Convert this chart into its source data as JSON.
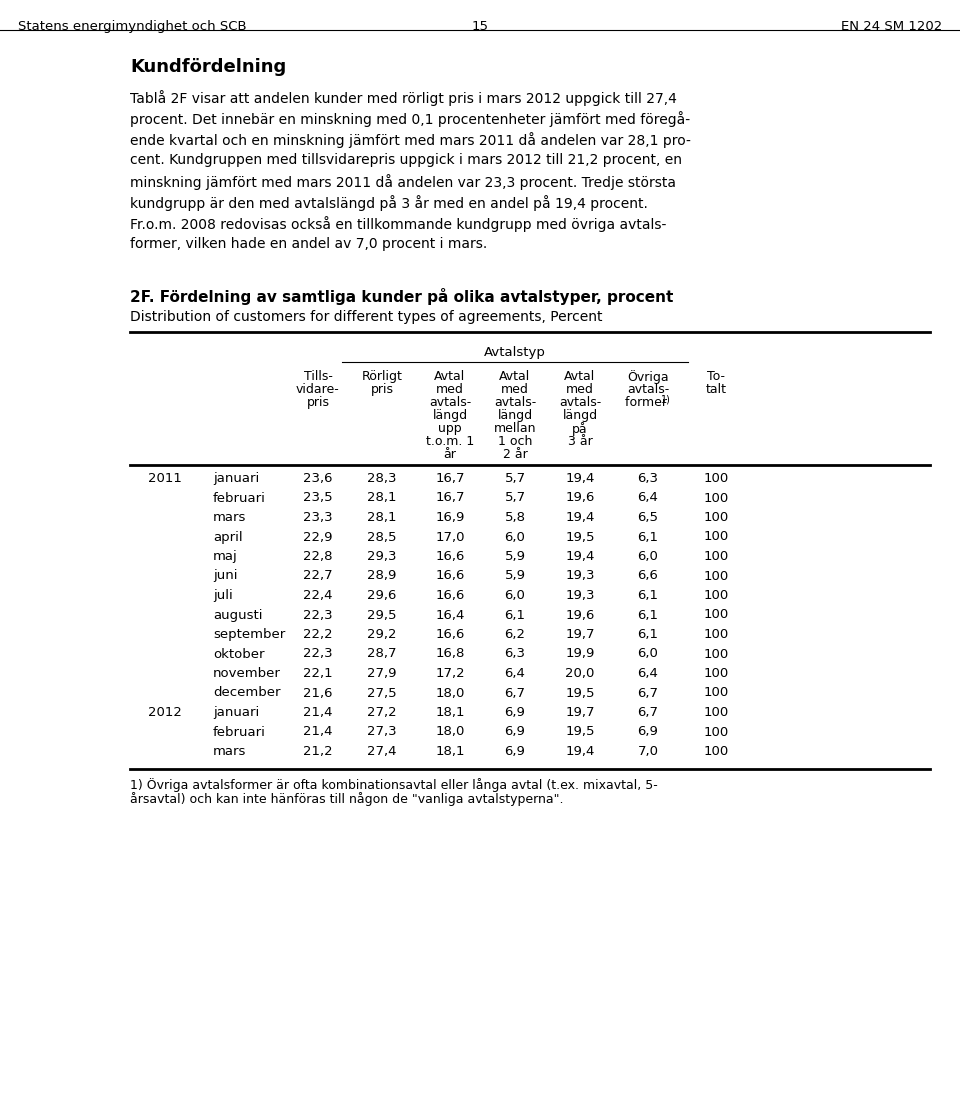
{
  "header_left": "Statens energimyndighet och SCB",
  "header_center": "15",
  "header_right": "EN 24 SM 1202",
  "section_title": "Kundfördelning",
  "body_paragraphs": [
    "Tablå 2F visar att andelen kunder med rörligt pris i mars 2012 uppgick till 27,4 procent. Det innebär en minskning med 0,1 procentenheter jämfört med föregå-ende kvartal och en minskning jämfört med mars 2011 då andelen var 28,1 pro-cent. Kundgruppen med tillsvidarepris uppgick i mars 2012 till 21,2 procent, en minskning jämfört med mars 2011 då andelen var 23,3 procent. Tredje största kundgrupp är den med avtalslängd på 3 år med en andel på 19,4 procent.",
    "Fr.o.m. 2008 redovisas också en tillkommande kundgrupp med övriga avtals-former, vilken hade en andel av 7,0 procent i mars."
  ],
  "table_title_bold": "2F. Fördelning av samtliga kunder på olika avtalstyper, procent",
  "table_title_normal": "Distribution of customers for different types of agreements, Percent",
  "col_group_header": "Avtalstyp",
  "col_header_line1": [
    "Tills-",
    "Rörligt",
    "Avtal",
    "Avtal",
    "Avtal",
    "Övriga",
    "To-"
  ],
  "col_header_line2": [
    "vidare-",
    "pris",
    "med",
    "med",
    "med",
    "avtals-",
    "talt"
  ],
  "col_header_line3": [
    "pris",
    "",
    "avtals-",
    "avtals-",
    "avtals-",
    "former 1)",
    ""
  ],
  "col_header_line4": [
    "",
    "",
    "längd",
    "längd",
    "längd",
    "",
    ""
  ],
  "col_header_line5": [
    "",
    "",
    "upp",
    "mellan",
    "på",
    "",
    ""
  ],
  "col_header_line6": [
    "",
    "",
    "t.o.m. 1",
    "1 och",
    "3 år",
    "",
    ""
  ],
  "col_header_line7": [
    "",
    "",
    "år",
    "2 år",
    "",
    "",
    ""
  ],
  "rows": [
    [
      "2011",
      "januari",
      "23,6",
      "28,3",
      "16,7",
      "5,7",
      "19,4",
      "6,3",
      "100"
    ],
    [
      "",
      "februari",
      "23,5",
      "28,1",
      "16,7",
      "5,7",
      "19,6",
      "6,4",
      "100"
    ],
    [
      "",
      "mars",
      "23,3",
      "28,1",
      "16,9",
      "5,8",
      "19,4",
      "6,5",
      "100"
    ],
    [
      "",
      "april",
      "22,9",
      "28,5",
      "17,0",
      "6,0",
      "19,5",
      "6,1",
      "100"
    ],
    [
      "",
      "maj",
      "22,8",
      "29,3",
      "16,6",
      "5,9",
      "19,4",
      "6,0",
      "100"
    ],
    [
      "",
      "juni",
      "22,7",
      "28,9",
      "16,6",
      "5,9",
      "19,3",
      "6,6",
      "100"
    ],
    [
      "",
      "juli",
      "22,4",
      "29,6",
      "16,6",
      "6,0",
      "19,3",
      "6,1",
      "100"
    ],
    [
      "",
      "augusti",
      "22,3",
      "29,5",
      "16,4",
      "6,1",
      "19,6",
      "6,1",
      "100"
    ],
    [
      "",
      "september",
      "22,2",
      "29,2",
      "16,6",
      "6,2",
      "19,7",
      "6,1",
      "100"
    ],
    [
      "",
      "oktober",
      "22,3",
      "28,7",
      "16,8",
      "6,3",
      "19,9",
      "6,0",
      "100"
    ],
    [
      "",
      "november",
      "22,1",
      "27,9",
      "17,2",
      "6,4",
      "20,0",
      "6,4",
      "100"
    ],
    [
      "",
      "december",
      "21,6",
      "27,5",
      "18,0",
      "6,7",
      "19,5",
      "6,7",
      "100"
    ],
    [
      "2012",
      "januari",
      "21,4",
      "27,2",
      "18,1",
      "6,9",
      "19,7",
      "6,7",
      "100"
    ],
    [
      "",
      "februari",
      "21,4",
      "27,3",
      "18,0",
      "6,9",
      "19,5",
      "6,9",
      "100"
    ],
    [
      "",
      "mars",
      "21,2",
      "27,4",
      "18,1",
      "6,9",
      "19,4",
      "7,0",
      "100"
    ]
  ],
  "footnote_line1": "1) Övriga avtalsformer är ofta kombinationsavtal eller långa avtal (t.ex. mixavtal, 5-",
  "footnote_line2": "årsavtal) och kan inte hänföras till någon de \"vanliga avtalstyperna\".",
  "bg_color": "#ffffff",
  "text_color": "#000000"
}
